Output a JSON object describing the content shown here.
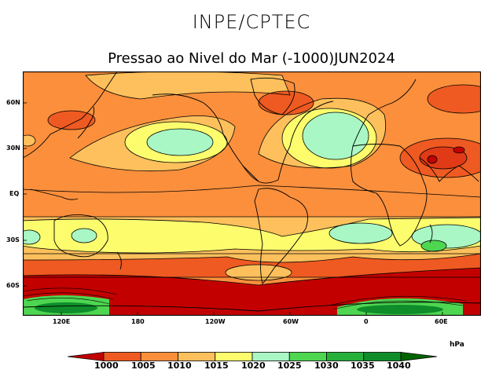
{
  "header": {
    "org": "INPE/CPTEC",
    "title": "Pressao ao Nivel do Mar (-1000)JUN2024"
  },
  "axes": {
    "lat_labels": [
      "60N",
      "30N",
      "EQ",
      "30S",
      "60S"
    ],
    "lon_labels": [
      "120E",
      "180",
      "120W",
      "60W",
      "0",
      "60E"
    ]
  },
  "legend": {
    "unit": "hPa",
    "levels": [
      "1000",
      "1005",
      "1010",
      "1015",
      "1020",
      "1025",
      "1030",
      "1035",
      "1040"
    ],
    "colors": [
      "#c30000",
      "#ee5a21",
      "#fb8f3c",
      "#fdc05c",
      "#fcfc6d",
      "#a9f7c4",
      "#4ed651",
      "#26b03a",
      "#0f8d2a",
      "#006400"
    ]
  }
}
